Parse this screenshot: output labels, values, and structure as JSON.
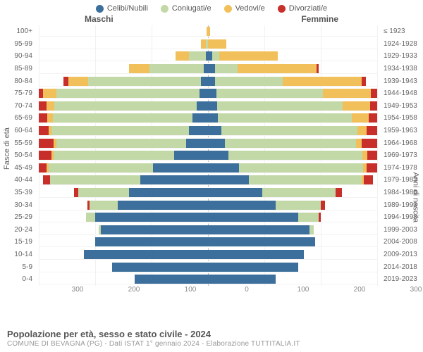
{
  "legend": [
    {
      "label": "Celibi/Nubili",
      "color": "#3c6f9c"
    },
    {
      "label": "Coniugati/e",
      "color": "#c2d8a7"
    },
    {
      "label": "Vedovi/e",
      "color": "#f2c05a"
    },
    {
      "label": "Divorziati/e",
      "color": "#c92f2a"
    }
  ],
  "side_titles": {
    "left": "Maschi",
    "right": "Femmine"
  },
  "axis_titles": {
    "left": "Fasce di età",
    "right": "Anni di nascita"
  },
  "x_axis": {
    "max": 300,
    "ticks": [
      "300",
      "200",
      "100",
      "0",
      "100",
      "200",
      "300"
    ]
  },
  "footer": {
    "title": "Popolazione per età, sesso e stato civile - 2024",
    "sub": "COMUNE DI BEVAGNA (PG) - Dati ISTAT 1° gennaio 2024 - Elaborazione TUTTITALIA.IT"
  },
  "rows": [
    {
      "age": "100+",
      "birth": "≤ 1923",
      "m": {
        "c": 0,
        "s": 0,
        "v": 1,
        "d": 0
      },
      "f": {
        "c": 0,
        "s": 0,
        "v": 2,
        "d": 0
      }
    },
    {
      "age": "95-99",
      "birth": "1924-1928",
      "m": {
        "c": 0,
        "s": 2,
        "v": 4,
        "d": 0
      },
      "f": {
        "c": 0,
        "s": 0,
        "v": 16,
        "d": 0
      }
    },
    {
      "age": "90-94",
      "birth": "1929-1933",
      "m": {
        "c": 2,
        "s": 15,
        "v": 12,
        "d": 0
      },
      "f": {
        "c": 4,
        "s": 6,
        "v": 52,
        "d": 0
      }
    },
    {
      "age": "85-89",
      "birth": "1934-1938",
      "m": {
        "c": 4,
        "s": 48,
        "v": 18,
        "d": 0
      },
      "f": {
        "c": 6,
        "s": 20,
        "v": 70,
        "d": 2
      }
    },
    {
      "age": "80-84",
      "birth": "1939-1943",
      "m": {
        "c": 6,
        "s": 100,
        "v": 18,
        "d": 4
      },
      "f": {
        "c": 6,
        "s": 60,
        "v": 70,
        "d": 4
      }
    },
    {
      "age": "75-79",
      "birth": "1944-1948",
      "m": {
        "c": 8,
        "s": 130,
        "v": 12,
        "d": 4
      },
      "f": {
        "c": 8,
        "s": 100,
        "v": 45,
        "d": 6
      }
    },
    {
      "age": "70-74",
      "birth": "1949-1953",
      "m": {
        "c": 12,
        "s": 150,
        "v": 8,
        "d": 8
      },
      "f": {
        "c": 10,
        "s": 140,
        "v": 30,
        "d": 8
      }
    },
    {
      "age": "65-69",
      "birth": "1954-1958",
      "m": {
        "c": 18,
        "s": 160,
        "v": 6,
        "d": 10
      },
      "f": {
        "c": 12,
        "s": 160,
        "v": 20,
        "d": 10
      }
    },
    {
      "age": "60-64",
      "birth": "1959-1963",
      "m": {
        "c": 24,
        "s": 170,
        "v": 4,
        "d": 12
      },
      "f": {
        "c": 18,
        "s": 180,
        "v": 12,
        "d": 14
      }
    },
    {
      "age": "55-59",
      "birth": "1964-1968",
      "m": {
        "c": 30,
        "s": 175,
        "v": 4,
        "d": 20
      },
      "f": {
        "c": 24,
        "s": 185,
        "v": 8,
        "d": 22
      }
    },
    {
      "age": "50-54",
      "birth": "1969-1973",
      "m": {
        "c": 42,
        "s": 150,
        "v": 2,
        "d": 16
      },
      "f": {
        "c": 24,
        "s": 160,
        "v": 6,
        "d": 12
      }
    },
    {
      "age": "45-49",
      "birth": "1974-1978",
      "m": {
        "c": 55,
        "s": 105,
        "v": 2,
        "d": 8
      },
      "f": {
        "c": 30,
        "s": 120,
        "v": 4,
        "d": 10
      }
    },
    {
      "age": "40-44",
      "birth": "1979-1983",
      "m": {
        "c": 60,
        "s": 80,
        "v": 0,
        "d": 6
      },
      "f": {
        "c": 36,
        "s": 100,
        "v": 2,
        "d": 8
      }
    },
    {
      "age": "35-39",
      "birth": "1984-1988",
      "m": {
        "c": 70,
        "s": 45,
        "v": 0,
        "d": 4
      },
      "f": {
        "c": 48,
        "s": 65,
        "v": 0,
        "d": 6
      }
    },
    {
      "age": "30-34",
      "birth": "1989-1993",
      "m": {
        "c": 80,
        "s": 25,
        "v": 0,
        "d": 2
      },
      "f": {
        "c": 60,
        "s": 40,
        "v": 0,
        "d": 4
      }
    },
    {
      "age": "25-29",
      "birth": "1994-1998",
      "m": {
        "c": 100,
        "s": 8,
        "v": 0,
        "d": 0
      },
      "f": {
        "c": 80,
        "s": 18,
        "v": 0,
        "d": 2
      }
    },
    {
      "age": "20-24",
      "birth": "1999-2003",
      "m": {
        "c": 95,
        "s": 2,
        "v": 0,
        "d": 0
      },
      "f": {
        "c": 90,
        "s": 4,
        "v": 0,
        "d": 0
      }
    },
    {
      "age": "15-19",
      "birth": "2004-2008",
      "m": {
        "c": 100,
        "s": 0,
        "v": 0,
        "d": 0
      },
      "f": {
        "c": 95,
        "s": 0,
        "v": 0,
        "d": 0
      }
    },
    {
      "age": "10-14",
      "birth": "2009-2013",
      "m": {
        "c": 110,
        "s": 0,
        "v": 0,
        "d": 0
      },
      "f": {
        "c": 85,
        "s": 0,
        "v": 0,
        "d": 0
      }
    },
    {
      "age": "5-9",
      "birth": "2014-2018",
      "m": {
        "c": 85,
        "s": 0,
        "v": 0,
        "d": 0
      },
      "f": {
        "c": 80,
        "s": 0,
        "v": 0,
        "d": 0
      }
    },
    {
      "age": "0-4",
      "birth": "2019-2023",
      "m": {
        "c": 65,
        "s": 0,
        "v": 0,
        "d": 0
      },
      "f": {
        "c": 60,
        "s": 0,
        "v": 0,
        "d": 0
      }
    }
  ]
}
